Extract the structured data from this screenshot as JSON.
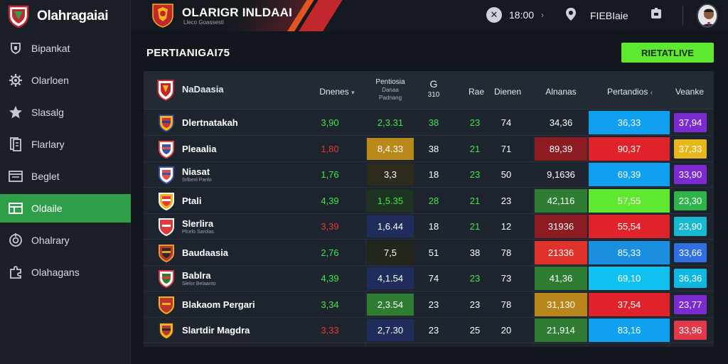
{
  "app": {
    "name": "Olahragaiai"
  },
  "sidebar": {
    "items": [
      {
        "label": "Bipankat",
        "icon": "shield-icon",
        "active": false
      },
      {
        "label": "Olarloen",
        "icon": "gear-icon",
        "active": false
      },
      {
        "label": "Slasalg",
        "icon": "star-icon",
        "active": false
      },
      {
        "label": "Flarlary",
        "icon": "document-icon",
        "active": false
      },
      {
        "label": "Beglet",
        "icon": "window-icon",
        "active": false
      },
      {
        "label": "Oldaile",
        "icon": "table-icon",
        "active": true
      },
      {
        "label": "Ohalrary",
        "icon": "target-icon",
        "active": false
      },
      {
        "label": "Olahagans",
        "icon": "puzzle-icon",
        "active": false
      }
    ]
  },
  "topbar": {
    "league_title": "OLARIGR INLDAAI",
    "league_subtitle": "Lleco Goassesti",
    "time": "18:00",
    "profile_label": "FIEBIaie"
  },
  "main": {
    "page_title": "PERTIANIGAI75",
    "action_button": "RIETATLIVE"
  },
  "table": {
    "header": {
      "team": "NaDaasia",
      "col1": "Dnenes",
      "col2_lines": [
        "Pentiosia",
        "Danaa",
        "Padnang"
      ],
      "col3_top": "G",
      "col3_bottom": "310",
      "col4": "Rae",
      "col5": "Dienen",
      "col6": "Alnanas",
      "col7": "Pertandios",
      "col8": "Veanke"
    },
    "rows": [
      {
        "team": "Dlertnatakah",
        "sub": "",
        "c1": "3,90",
        "c1_color": "#3ee84a",
        "c2": "2,3.31",
        "c2_bg": "",
        "c2_color": "#3ee84a",
        "c3": "38",
        "c3_color": "#3ee84a",
        "c4": "23",
        "c4_color": "#3ee84a",
        "c5": "74",
        "c6": "34,36",
        "c6_bg": "",
        "c7": "36,33",
        "c7_bg": "#0fa0f0",
        "c8": "37,94",
        "c8_bg": "#7b2bd0",
        "badge": [
          "#c9343a",
          "#2a3e8c",
          "#f2b41c"
        ]
      },
      {
        "team": "Pleaalia",
        "sub": "",
        "c1": "1,80",
        "c1_color": "#e53935",
        "c2": "8,4.33",
        "c2_bg": "#b9891a",
        "c2_color": "#ffffff",
        "c3": "38",
        "c3_color": "#ffffff",
        "c4": "21",
        "c4_color": "#3ee84a",
        "c5": "71",
        "c6": "89,39",
        "c6_bg": "#8c1c22",
        "c7": "90,37",
        "c7_bg": "#e0232a",
        "c8": "37,33",
        "c8_bg": "#e8b71c",
        "badge": [
          "#3656a8",
          "#e24f4f",
          "#ffffff"
        ]
      },
      {
        "team": "Niasat",
        "sub": "Srlbenl Panlo",
        "c1": "1,76",
        "c1_color": "#3ee84a",
        "c2": "3,3",
        "c2_bg": "#2d2a1e",
        "c2_color": "#ffffff",
        "c3": "18",
        "c3_color": "#ffffff",
        "c4": "23",
        "c4_color": "#3ee84a",
        "c5": "50",
        "c6": "9,1636",
        "c6_bg": "",
        "c7": "69,39",
        "c7_bg": "#0fa0f0",
        "c8": "33,90",
        "c8_bg": "#7b2bd0",
        "badge": [
          "#e24f4f",
          "#3656a8",
          "#ffffff"
        ]
      },
      {
        "team": "Ptali",
        "sub": "",
        "c1": "4,39",
        "c1_color": "#3ee84a",
        "c2": "1,5.35",
        "c2_bg": "#1f3322",
        "c2_color": "#3ee84a",
        "c3": "28",
        "c3_color": "#3ee84a",
        "c4": "21",
        "c4_color": "#3ee84a",
        "c5": "23",
        "c6": "42,116",
        "c6_bg": "#2e7d32",
        "c7": "57,55",
        "c7_bg": "#5ee82f",
        "c8": "23,30",
        "c8_bg": "#2fb34a",
        "badge": [
          "#e03a3a",
          "#ffffff",
          "#f2b41c"
        ]
      },
      {
        "team": "Slerlira",
        "sub": "Plcelo Sarolas",
        "c1": "3,39",
        "c1_color": "#e53935",
        "c2": "1,6.44",
        "c2_bg": "#1e2d5c",
        "c2_color": "#ffffff",
        "c3": "18",
        "c3_color": "#ffffff",
        "c4": "21",
        "c4_color": "#3ee84a",
        "c5": "12",
        "c6": "31936",
        "c6_bg": "#8c1c22",
        "c7": "55,54",
        "c7_bg": "#e0232a",
        "c8": "23,90",
        "c8_bg": "#18b8d0",
        "badge": [
          "#e03a3a",
          "#ffffff",
          "#e03a3a"
        ]
      },
      {
        "team": "Baudaasia",
        "sub": "",
        "c1": "2,76",
        "c1_color": "#3ee84a",
        "c2": "7,5",
        "c2_bg": "#23261d",
        "c2_color": "#ffffff",
        "c3": "51",
        "c3_color": "#ffffff",
        "c4": "38",
        "c4_color": "#ffffff",
        "c5": "78",
        "c6": "21336",
        "c6_bg": "#e0322a",
        "c7": "85,33",
        "c7_bg": "#1a8fe0",
        "c8": "33,66",
        "c8_bg": "#2f6fe0",
        "badge": [
          "#2a2a2a",
          "#e2a22a",
          "#c0342e"
        ]
      },
      {
        "team": "Bablra",
        "sub": "Slelor Belaanto",
        "c1": "4,39",
        "c1_color": "#3ee84a",
        "c2": "4,1.54",
        "c2_bg": "#1e2d5c",
        "c2_color": "#ffffff",
        "c3": "74",
        "c3_color": "#ffffff",
        "c4": "23",
        "c4_color": "#3ee84a",
        "c5": "73",
        "c6": "41,36",
        "c6_bg": "#2e7d32",
        "c7": "69,10",
        "c7_bg": "#10c0f0",
        "c8": "36,36",
        "c8_bg": "#10b8e0",
        "badge": [
          "#2e7d32",
          "#e03a3a",
          "#ffffff"
        ]
      },
      {
        "team": "Blakaom Pergari",
        "sub": "",
        "c1": "3,34",
        "c1_color": "#3ee84a",
        "c2": "2,3.54",
        "c2_bg": "#2e7d32",
        "c2_color": "#ffffff",
        "c3": "23",
        "c3_color": "#ffffff",
        "c4": "23",
        "c4_color": "#ffffff",
        "c5": "78",
        "c6": "31,130",
        "c6_bg": "#b8861a",
        "c7": "37,54",
        "c7_bg": "#e0232a",
        "c8": "23,77",
        "c8_bg": "#7b2bd0",
        "badge": [
          "#c0342e",
          "#f2b41c",
          "#c0342e"
        ]
      },
      {
        "team": "Slartdir Magdra",
        "sub": "",
        "c1": "3,33",
        "c1_color": "#e53935",
        "c2": "2,7.30",
        "c2_bg": "#1e2d5c",
        "c2_color": "#ffffff",
        "c3": "23",
        "c3_color": "#ffffff",
        "c4": "25",
        "c4_color": "#ffffff",
        "c5": "20",
        "c6": "21,914",
        "c6_bg": "#2e7d32",
        "c7": "83,16",
        "c7_bg": "#0fa0f0",
        "c8": "33,96",
        "c8_bg": "#e03a4a",
        "badge": [
          "#c0342e",
          "#2a2a2a",
          "#f2b41c"
        ]
      }
    ]
  }
}
